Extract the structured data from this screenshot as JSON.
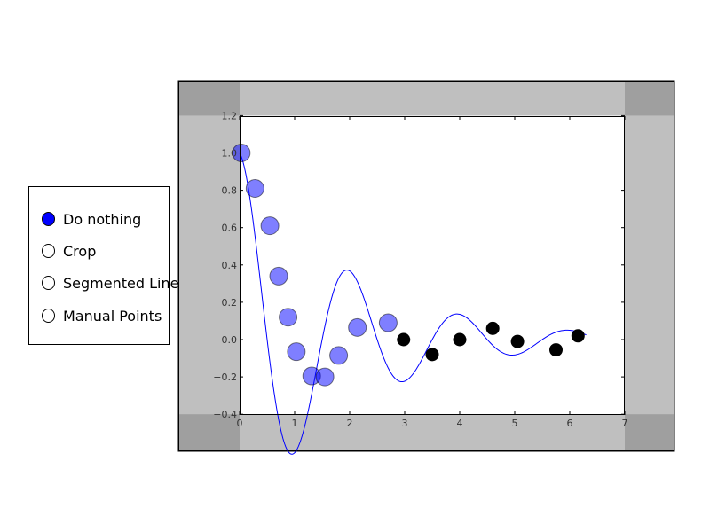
{
  "radio": {
    "options": [
      "Do nothing",
      "Crop",
      "Segmented Line",
      "Manual Points"
    ],
    "selected": 0,
    "colors": {
      "selected": "#0000ff",
      "unselected": "#ffffff"
    }
  },
  "chart_data": {
    "type": "line",
    "title": "",
    "xlabel": "",
    "ylabel": "",
    "xlim": [
      0,
      7
    ],
    "ylim": [
      -0.4,
      1.2
    ],
    "xticks": [
      "0",
      "1",
      "2",
      "3",
      "4",
      "5",
      "6",
      "7"
    ],
    "yticks": [
      "−0.4",
      "−0.2",
      "0.0",
      "0.2",
      "0.4",
      "0.6",
      "0.8",
      "1.0",
      "1.2"
    ],
    "grid": false,
    "curve_color": "#0000ff",
    "curve_x_range": [
      0,
      6.3
    ],
    "selected_points": {
      "color": "#0000ff",
      "alpha": 0.5,
      "x": [
        0.03,
        0.28,
        0.55,
        0.71,
        0.88,
        1.03,
        1.31,
        1.55,
        1.8,
        2.14,
        2.7
      ],
      "y": [
        1.0,
        0.81,
        0.61,
        0.34,
        0.12,
        -0.065,
        -0.195,
        -0.2,
        -0.085,
        0.065,
        0.09
      ]
    },
    "unselected_points": {
      "color": "#000000",
      "x": [
        2.98,
        3.5,
        4.0,
        4.6,
        5.05,
        5.75,
        6.15
      ],
      "y": [
        0.0,
        -0.08,
        0.0,
        0.06,
        -0.01,
        -0.055,
        0.02
      ]
    },
    "crop_shading": {
      "x": [
        0,
        7
      ],
      "y": [
        -0.4,
        1.2
      ],
      "color": "#808080"
    }
  }
}
